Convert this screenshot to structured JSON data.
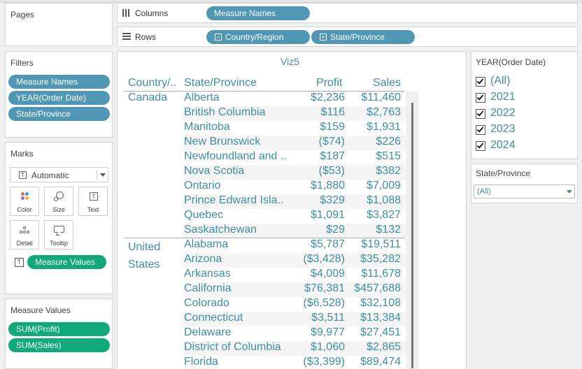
{
  "pages": {
    "title": "Pages"
  },
  "columns_shelf": {
    "label": "Columns",
    "pills": [
      "Measure Names"
    ]
  },
  "rows_shelf": {
    "label": "Rows",
    "pills": [
      "Country/Region",
      "State/Province"
    ]
  },
  "filters": {
    "title": "Filters",
    "pills": [
      "Measure Names",
      "YEAR(Order Date)",
      "State/Province"
    ]
  },
  "marks": {
    "title": "Marks",
    "type": "Automatic",
    "buttons": [
      "Color",
      "Size",
      "Text",
      "Detail",
      "Tooltip"
    ],
    "pill": "Measure Values"
  },
  "measure_values": {
    "title": "Measure Values",
    "pills": [
      "SUM(Profit)",
      "SUM(Sales)"
    ]
  },
  "viz": {
    "title": "Viz5",
    "headers": {
      "country": "Country/..",
      "state": "State/Province",
      "profit": "Profit",
      "sales": "Sales"
    },
    "canada": {
      "label": "Canada",
      "rows": [
        {
          "state": "Alberta",
          "profit": "$2,236",
          "sales": "$11,460"
        },
        {
          "state": "British Columbia",
          "profit": "$116",
          "sales": "$2,763"
        },
        {
          "state": "Manitoba",
          "profit": "$159",
          "sales": "$1,931"
        },
        {
          "state": "New Brunswick",
          "profit": "($74)",
          "sales": "$226"
        },
        {
          "state": "Newfoundland and ..",
          "profit": "$187",
          "sales": "$515"
        },
        {
          "state": "Nova Scotia",
          "profit": "($53)",
          "sales": "$382"
        },
        {
          "state": "Ontario",
          "profit": "$1,880",
          "sales": "$7,009"
        },
        {
          "state": "Prince Edward Isla..",
          "profit": "$329",
          "sales": "$1,088"
        },
        {
          "state": "Quebec",
          "profit": "$1,091",
          "sales": "$3,827"
        },
        {
          "state": "Saskatchewan",
          "profit": "$29",
          "sales": "$132"
        }
      ]
    },
    "us": {
      "label_line1": "United",
      "label_line2": "States",
      "rows": [
        {
          "state": "Alabama",
          "profit": "$5,787",
          "sales": "$19,511"
        },
        {
          "state": "Arizona",
          "profit": "($3,428)",
          "sales": "$35,282"
        },
        {
          "state": "Arkansas",
          "profit": "$4,009",
          "sales": "$11,678"
        },
        {
          "state": "California",
          "profit": "$76,381",
          "sales": "$457,688"
        },
        {
          "state": "Colorado",
          "profit": "($6,528)",
          "sales": "$32,108"
        },
        {
          "state": "Connecticut",
          "profit": "$3,511",
          "sales": "$13,384"
        },
        {
          "state": "Delaware",
          "profit": "$9,977",
          "sales": "$27,451"
        },
        {
          "state": "District of Columbia",
          "profit": "$1,060",
          "sales": "$2,865"
        },
        {
          "state": "Florida",
          "profit": "($3,399)",
          "sales": "$89,474"
        }
      ]
    }
  },
  "year_filter": {
    "title": "YEAR(Order Date)",
    "options": [
      {
        "label": "(All)",
        "checked": true
      },
      {
        "label": "2021",
        "checked": true
      },
      {
        "label": "2022",
        "checked": true
      },
      {
        "label": "2023",
        "checked": true
      },
      {
        "label": "2024",
        "checked": true
      }
    ]
  },
  "state_filter": {
    "title": "State/Province",
    "value": "(All)"
  },
  "colors": {
    "text_teal": "#3f8ea3",
    "pill_blue": "#4f97b5",
    "pill_green": "#10a97a"
  }
}
